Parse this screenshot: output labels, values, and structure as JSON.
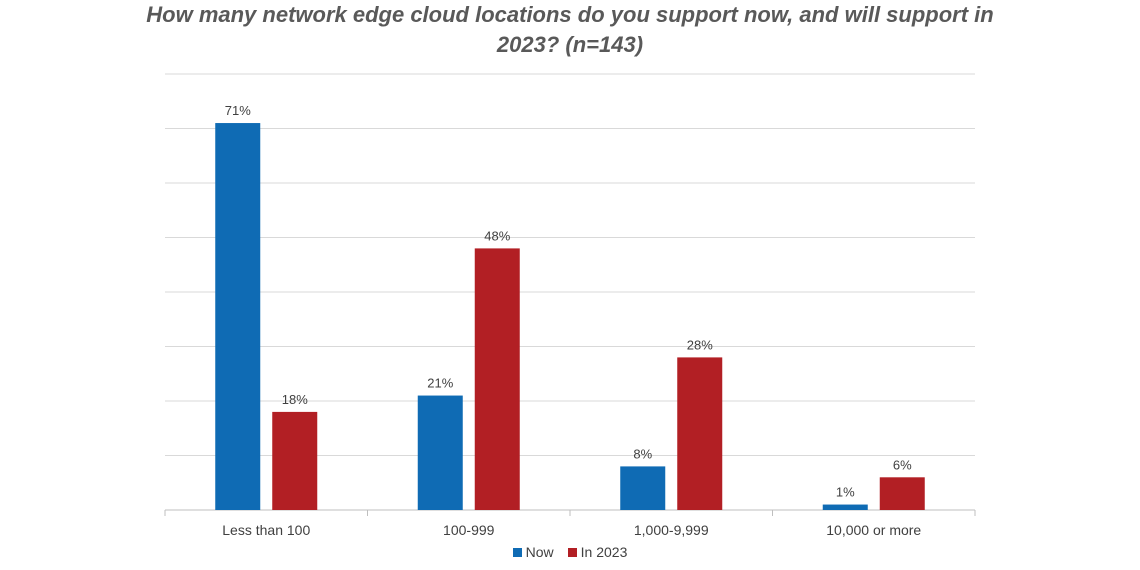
{
  "chart_data": {
    "type": "bar",
    "title": "How many network edge cloud locations do you support now, and will support in 2023? (n=143)",
    "categories": [
      "Less than 100",
      "100-999",
      "1,000-9,999",
      "10,000 or more"
    ],
    "series": [
      {
        "name": "Now",
        "values": [
          71,
          21,
          8,
          1
        ],
        "labels": [
          "71%",
          "21%",
          "8%",
          "1%"
        ],
        "color": "#0F6BB4"
      },
      {
        "name": "In 2023",
        "values": [
          18,
          48,
          28,
          6
        ],
        "labels": [
          "18%",
          "48%",
          "28%",
          "6%"
        ],
        "color": "#B21F24"
      }
    ],
    "ylim": [
      0,
      80
    ],
    "grid": true,
    "legend": "bottom",
    "xlabel": "",
    "ylabel": ""
  }
}
